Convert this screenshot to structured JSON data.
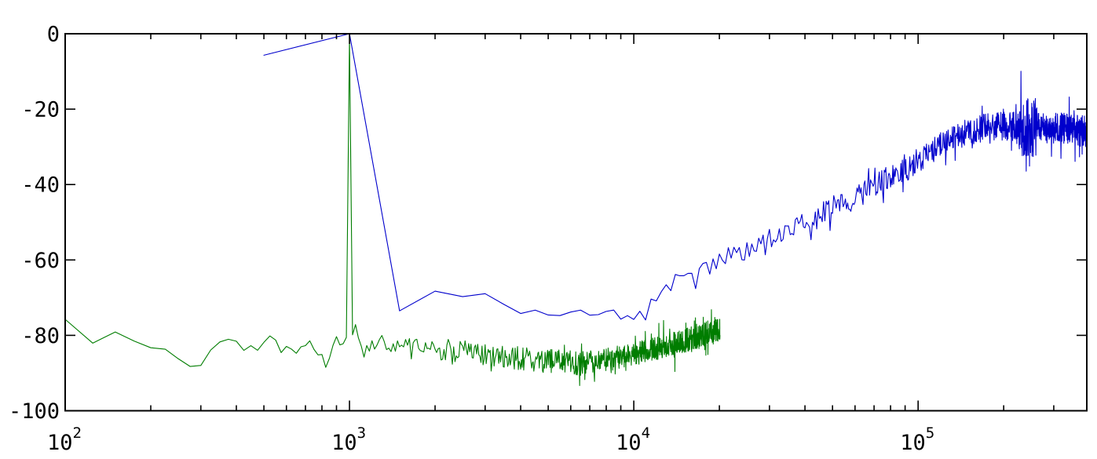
{
  "chart_data": {
    "type": "line",
    "title": "",
    "xlabel": "",
    "ylabel": "",
    "xscale": "log",
    "xlim": [
      100,
      392000
    ],
    "ylim": [
      -100,
      0
    ],
    "grid": false,
    "legend": false,
    "background": "#ffffff",
    "frame_color": "#000000",
    "tick_font_px": 27,
    "x_ticks": [
      {
        "value": 100,
        "base": "10",
        "exp": "2"
      },
      {
        "value": 1000,
        "base": "10",
        "exp": "3"
      },
      {
        "value": 10000,
        "base": "10",
        "exp": "4"
      },
      {
        "value": 100000,
        "base": "10",
        "exp": "5"
      }
    ],
    "y_ticks": [
      {
        "value": 0,
        "label": "0"
      },
      {
        "value": -20,
        "label": "-20"
      },
      {
        "value": -40,
        "label": "-40"
      },
      {
        "value": -60,
        "label": "-60"
      },
      {
        "value": -80,
        "label": "-80"
      },
      {
        "value": -100,
        "label": "-100"
      }
    ],
    "series": [
      {
        "name": "blue",
        "color": "#0000cc",
        "line_width": 1.1,
        "bin_hz": 500,
        "f_start": 500,
        "f_end": 392000,
        "seed": 1337,
        "spike_prob": 0.06,
        "spike_gain": 1.5,
        "envelope": [
          [
            500,
            -5.7
          ],
          [
            1000,
            0
          ],
          [
            1500,
            -73.5
          ],
          [
            2000,
            -68.5
          ],
          [
            2500,
            -69.5
          ],
          [
            3000,
            -70.5
          ],
          [
            3500,
            -72.5
          ],
          [
            5000,
            -73
          ],
          [
            8000,
            -73.5
          ],
          [
            10000,
            -74
          ],
          [
            11000,
            -73.5
          ],
          [
            12000,
            -71
          ],
          [
            14000,
            -66.5
          ],
          [
            16000,
            -63.5
          ],
          [
            20000,
            -60
          ],
          [
            25000,
            -57
          ],
          [
            30000,
            -55
          ],
          [
            35000,
            -52.5
          ],
          [
            40000,
            -50.5
          ],
          [
            50000,
            -47
          ],
          [
            60000,
            -43.5
          ],
          [
            70000,
            -40.5
          ],
          [
            80000,
            -38
          ],
          [
            90000,
            -36
          ],
          [
            100000,
            -33.5
          ],
          [
            110000,
            -31.5
          ],
          [
            120000,
            -29.5
          ],
          [
            135000,
            -27.5
          ],
          [
            150000,
            -26
          ],
          [
            170000,
            -25
          ],
          [
            200000,
            -24.5
          ],
          [
            240000,
            -24.5
          ],
          [
            270000,
            -25
          ],
          [
            320000,
            -25
          ],
          [
            392000,
            -26
          ]
        ],
        "noise": [
          [
            500,
            0
          ],
          [
            1700,
            0
          ],
          [
            2000,
            2.6
          ],
          [
            10000,
            2.6
          ],
          [
            12000,
            2.8
          ],
          [
            40000,
            3.0
          ],
          [
            70000,
            3.2
          ],
          [
            100000,
            3.4
          ],
          [
            150000,
            3.6
          ],
          [
            200000,
            3.8
          ],
          [
            392000,
            4.2
          ]
        ],
        "peaks": [],
        "bursts": [
          [
            46500,
            50500,
            1.8
          ],
          [
            225000,
            262000,
            2.0
          ]
        ]
      },
      {
        "name": "green",
        "color": "#007d00",
        "line_width": 1.1,
        "bin_hz": 25,
        "f_start": 100,
        "f_end": 20100,
        "seed": 42,
        "spike_prob": 0.07,
        "spike_gain": 1.5,
        "envelope": [
          [
            100,
            -76
          ],
          [
            125,
            -82.5
          ],
          [
            150,
            -78.5
          ],
          [
            200,
            -84
          ],
          [
            240,
            -83.5
          ],
          [
            285,
            -88.5
          ],
          [
            330,
            -83
          ],
          [
            370,
            -80.5
          ],
          [
            450,
            -84
          ],
          [
            550,
            -81
          ],
          [
            650,
            -85.5
          ],
          [
            730,
            -81.5
          ],
          [
            830,
            -89
          ],
          [
            900,
            -81.5
          ],
          [
            1000,
            -81
          ],
          [
            1400,
            -82.5
          ],
          [
            2000,
            -83.5
          ],
          [
            3000,
            -85
          ],
          [
            4500,
            -86.5
          ],
          [
            6500,
            -87.5
          ],
          [
            8000,
            -86.5
          ],
          [
            10000,
            -85
          ],
          [
            12000,
            -83.5
          ],
          [
            15000,
            -81.5
          ],
          [
            18000,
            -79.5
          ],
          [
            20100,
            -78
          ]
        ],
        "noise": [
          [
            100,
            1.2
          ],
          [
            500,
            1.8
          ],
          [
            950,
            1.8
          ],
          [
            1150,
            2.6
          ],
          [
            2000,
            3.0
          ],
          [
            6000,
            3.2
          ],
          [
            12000,
            3.0
          ],
          [
            20100,
            3.4
          ]
        ],
        "peaks": [
          [
            1000,
            -1
          ]
        ],
        "bursts": []
      }
    ]
  }
}
